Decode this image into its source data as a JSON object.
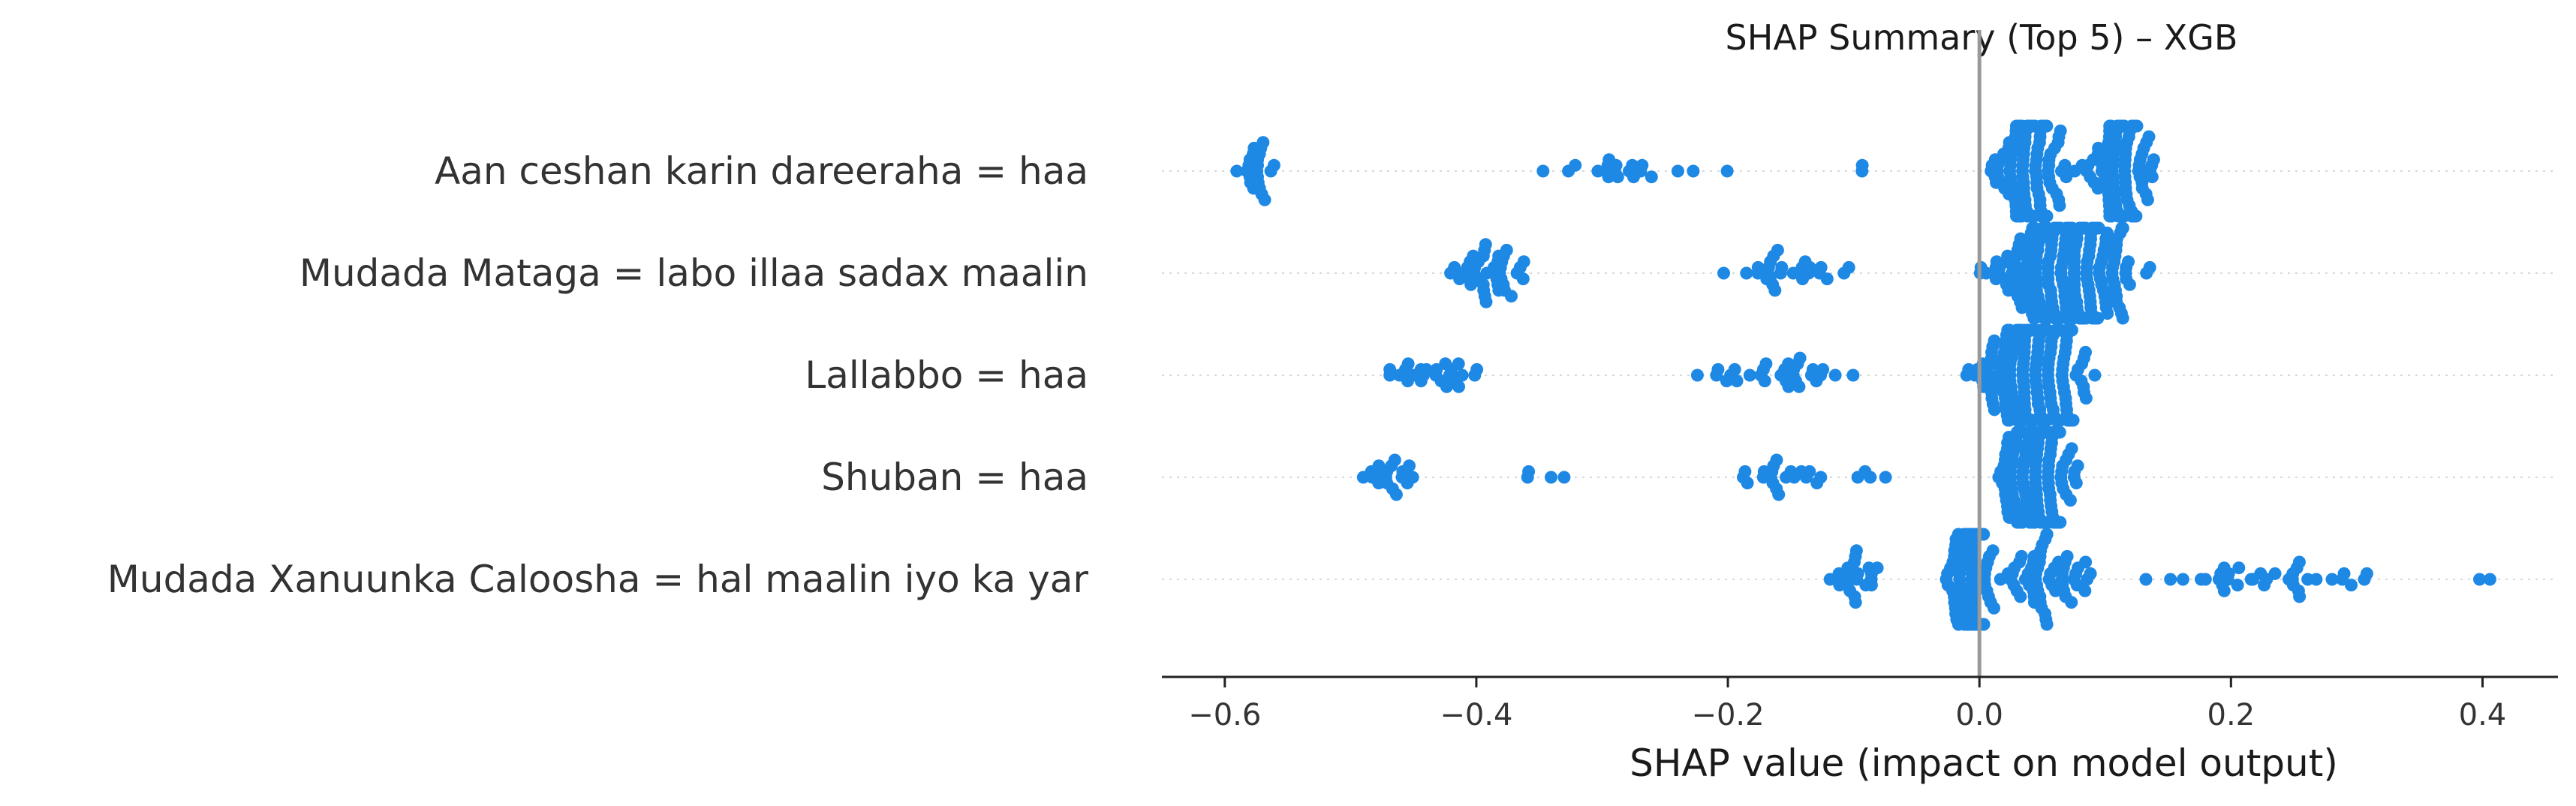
{
  "chart_data": {
    "type": "scatter",
    "subtype": "shap-beeswarm",
    "title": "SHAP Summary (Top 5) – XGB",
    "xlabel": "SHAP value (impact on model output)",
    "ylabel": "",
    "xlim": [
      -0.65,
      0.46
    ],
    "x_ticks": [
      -0.6,
      -0.4,
      -0.2,
      0.0,
      0.2,
      0.4
    ],
    "x_tick_labels": [
      "−0.6",
      "−0.4",
      "−0.2",
      "0.0",
      "0.2",
      "0.4"
    ],
    "grid": false,
    "zero_line": true,
    "colors": {
      "points": "#1e88e5",
      "zero_line": "#999999",
      "axis": "#222222",
      "row_guide": "#d8d8d8"
    },
    "features": [
      {
        "name": "Aan ceshan karin dareeraha = haa",
        "clusters": [
          {
            "x_min": -0.6,
            "x_max": -0.55,
            "n": 22
          },
          {
            "x_min": -0.41,
            "x_max": -0.17,
            "n": 20
          },
          {
            "x_min": -0.1,
            "x_max": -0.09,
            "n": 2
          },
          {
            "x_min": 0.0,
            "x_max": 0.08,
            "n": 130
          },
          {
            "x_min": 0.08,
            "x_max": 0.145,
            "n": 110
          }
        ]
      },
      {
        "name": "Mudada Mataga = labo illaa sadax maalin",
        "clusters": [
          {
            "x_min": -0.43,
            "x_max": -0.35,
            "n": 40
          },
          {
            "x_min": -0.25,
            "x_max": -0.06,
            "n": 26
          },
          {
            "x_min": -0.01,
            "x_max": 0.15,
            "n": 240
          }
        ]
      },
      {
        "name": "Lallabbo = haa",
        "clusters": [
          {
            "x_min": -0.49,
            "x_max": -0.38,
            "n": 24
          },
          {
            "x_min": -0.24,
            "x_max": -0.08,
            "n": 30
          },
          {
            "x_min": -0.02,
            "x_max": 0.1,
            "n": 220
          }
        ]
      },
      {
        "name": "Shuban = haa",
        "clusters": [
          {
            "x_min": -0.51,
            "x_max": -0.43,
            "n": 18
          },
          {
            "x_min": -0.39,
            "x_max": -0.32,
            "n": 4
          },
          {
            "x_min": -0.24,
            "x_max": -0.06,
            "n": 24
          },
          {
            "x_min": 0.0,
            "x_max": 0.09,
            "n": 180
          }
        ]
      },
      {
        "name": "Mudada Xanuunka Caloosha = hal maalin iyo ka yar",
        "clusters": [
          {
            "x_min": -0.13,
            "x_max": -0.07,
            "n": 22
          },
          {
            "x_min": -0.03,
            "x_max": 0.015,
            "n": 150
          },
          {
            "x_min": 0.01,
            "x_max": 0.1,
            "n": 60
          },
          {
            "x_min": 0.1,
            "x_max": 0.35,
            "n": 36
          },
          {
            "x_min": 0.39,
            "x_max": 0.41,
            "n": 2
          }
        ]
      }
    ]
  }
}
